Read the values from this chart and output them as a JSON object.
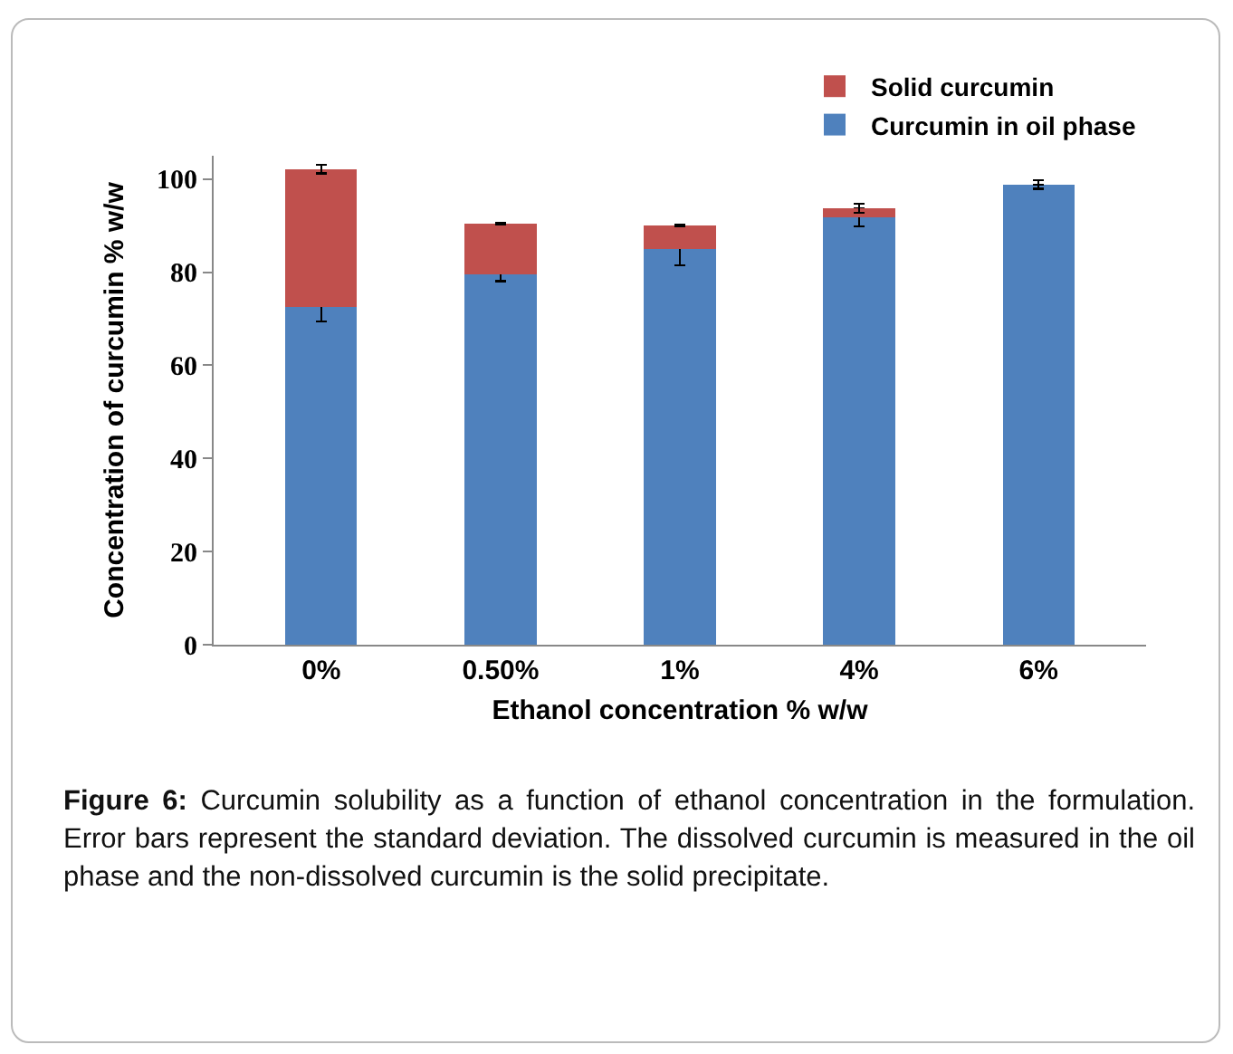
{
  "chart_data": {
    "type": "bar",
    "stacked": true,
    "xlabel": "Ethanol concentration % w/w",
    "ylabel": "Concentration of curcumin % w/w",
    "categories": [
      "0%",
      "0.50%",
      "1%",
      "4%",
      "6%"
    ],
    "series": [
      {
        "name": "Curcumin in oil phase",
        "color": "#4f81bd",
        "values": [
          72.5,
          79.6,
          85.0,
          91.7,
          98.8
        ],
        "errors": [
          3.1,
          1.5,
          3.5,
          1.9,
          0.9
        ]
      },
      {
        "name": "Solid curcumin",
        "color": "#c0504d",
        "values": [
          29.6,
          10.8,
          5.0,
          2.0,
          0
        ],
        "errors": [
          0.9,
          0.2,
          0.2,
          1.0,
          null
        ]
      }
    ],
    "ylim": [
      0,
      105
    ],
    "yticks": [
      0,
      20,
      40,
      60,
      80,
      100
    ],
    "grid": false,
    "legend": "top right",
    "annotations": [
      "Figure 6: Curcumin solubility as a function of ethanol concentration in the formulation. Error bars represent the standard deviation. The dissolved curcumin is measured in the oil phase and the non-dissolved curcumin is the solid precipitate."
    ]
  }
}
